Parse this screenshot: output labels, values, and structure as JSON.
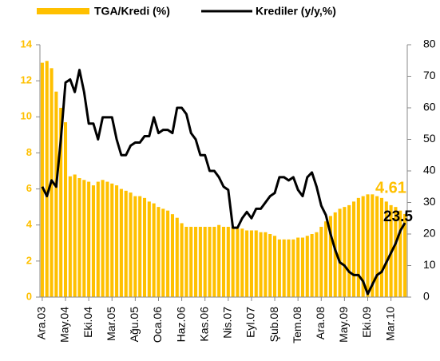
{
  "chart_data": {
    "type": "bar+line",
    "categories": [
      "Ara.03",
      null,
      null,
      null,
      null,
      "May.04",
      null,
      null,
      null,
      null,
      "Eki.04",
      null,
      null,
      null,
      null,
      "Mar.05",
      null,
      null,
      null,
      null,
      "Ağu.05",
      null,
      null,
      null,
      null,
      "Oca.06",
      null,
      null,
      null,
      null,
      "Haz.06",
      null,
      null,
      null,
      null,
      "Kas.06",
      null,
      null,
      null,
      null,
      "Nis.07",
      null,
      null,
      null,
      null,
      "Eyl.07",
      null,
      null,
      null,
      null,
      "Şub.08",
      null,
      null,
      null,
      null,
      "Tem.08",
      null,
      null,
      null,
      null,
      "Ara.08",
      null,
      null,
      null,
      null,
      "May.09",
      null,
      null,
      null,
      null,
      "Eki.09",
      null,
      null,
      null,
      null,
      "Mar.10",
      null,
      null,
      null
    ],
    "series": [
      {
        "name": "TGA/Kredi (%)",
        "type": "bar",
        "color": "#ffc000",
        "axis": "y",
        "values": [
          13.0,
          13.1,
          12.7,
          11.4,
          10.5,
          9.7,
          6.7,
          6.8,
          6.6,
          6.5,
          6.4,
          6.2,
          6.4,
          6.5,
          6.4,
          6.3,
          6.2,
          6.0,
          5.9,
          5.8,
          5.6,
          5.6,
          5.5,
          5.3,
          5.2,
          5.0,
          4.9,
          4.8,
          4.6,
          4.4,
          4.1,
          3.9,
          3.9,
          3.9,
          3.9,
          3.9,
          3.9,
          3.9,
          4.0,
          3.9,
          3.9,
          3.9,
          3.8,
          3.8,
          3.7,
          3.7,
          3.7,
          3.6,
          3.6,
          3.5,
          3.4,
          3.2,
          3.2,
          3.2,
          3.2,
          3.3,
          3.3,
          3.4,
          3.5,
          3.6,
          3.9,
          4.2,
          4.5,
          4.7,
          4.9,
          5.0,
          5.1,
          5.3,
          5.5,
          5.6,
          5.7,
          5.7,
          5.6,
          5.5,
          5.3,
          5.1,
          5.0,
          4.8,
          4.61
        ]
      },
      {
        "name": "Krediler (y/y,%)",
        "type": "line",
        "color": "#000000",
        "axis": "y2",
        "values": [
          35,
          32,
          37,
          35,
          50,
          68,
          69,
          65,
          72,
          65,
          55,
          55,
          50,
          57,
          57,
          57,
          50,
          45,
          45,
          48,
          49,
          49,
          51,
          51,
          57,
          52,
          53,
          53,
          52,
          60,
          60,
          58,
          52,
          50,
          45,
          45,
          40,
          40,
          38,
          35,
          34,
          22,
          22,
          25,
          27,
          25,
          28,
          28,
          30,
          32,
          33,
          38,
          38,
          37,
          38,
          34,
          32,
          38,
          39.5,
          35,
          29,
          26,
          20,
          15,
          11,
          10,
          8,
          7,
          7,
          5,
          1,
          4,
          7,
          8,
          11,
          14,
          17,
          21,
          23.5
        ]
      }
    ],
    "annotations": [
      {
        "text": "4.61",
        "color": "#ffc000"
      },
      {
        "text": "23.5",
        "color": "#000000"
      }
    ],
    "ylim": [
      0,
      14
    ],
    "yticks": [
      0,
      2,
      4,
      6,
      8,
      10,
      12,
      14
    ],
    "y2lim": [
      0,
      80
    ],
    "y2ticks": [
      0,
      10,
      20,
      30,
      40,
      50,
      60,
      70,
      80
    ],
    "legend": "top"
  }
}
